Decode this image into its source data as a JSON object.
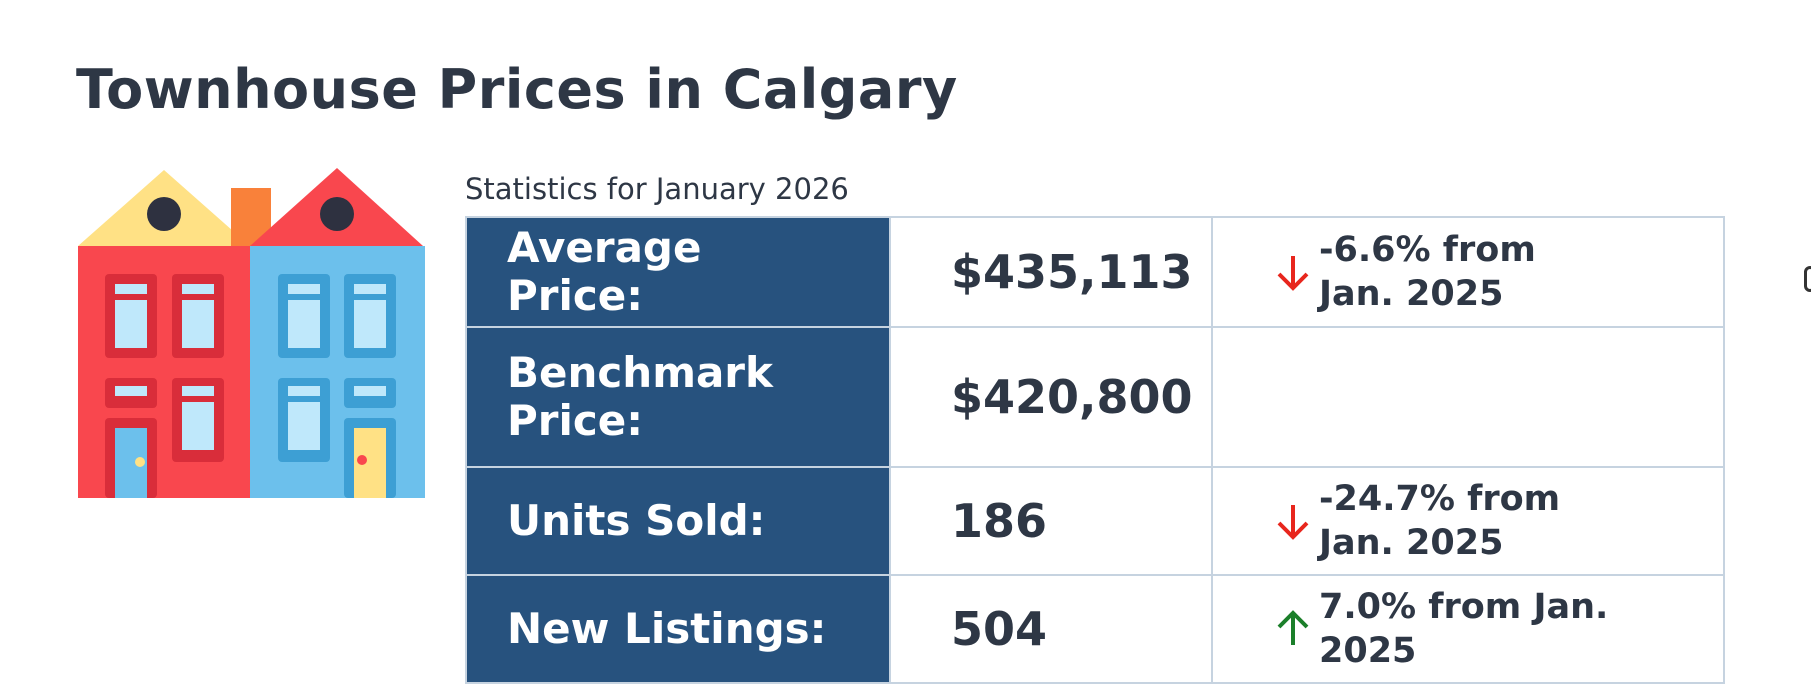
{
  "page": {
    "title": "Townhouse Prices in Calgary",
    "illustration_icon": "townhouses-illustration-icon"
  },
  "stats": {
    "caption": "Statistics for January 2026",
    "rows": [
      {
        "label": "Average Price:",
        "value": "$435,113",
        "change": "-6.6% from Jan. 2025",
        "trend": "down"
      },
      {
        "label": "Benchmark Price:",
        "value": "$420,800",
        "change": "",
        "trend": ""
      },
      {
        "label": "Units Sold:",
        "value": "186",
        "change": "-24.7% from Jan. 2025",
        "trend": "down"
      },
      {
        "label": "New Listings:",
        "value": "504",
        "change": "7.0% from Jan. 2025",
        "trend": "up"
      }
    ]
  },
  "colors": {
    "label_bg": "#27527e",
    "text": "#2e3745",
    "down_arrow": "#e8261d",
    "up_arrow": "#1b7f2a",
    "border": "#c6d3e0"
  }
}
